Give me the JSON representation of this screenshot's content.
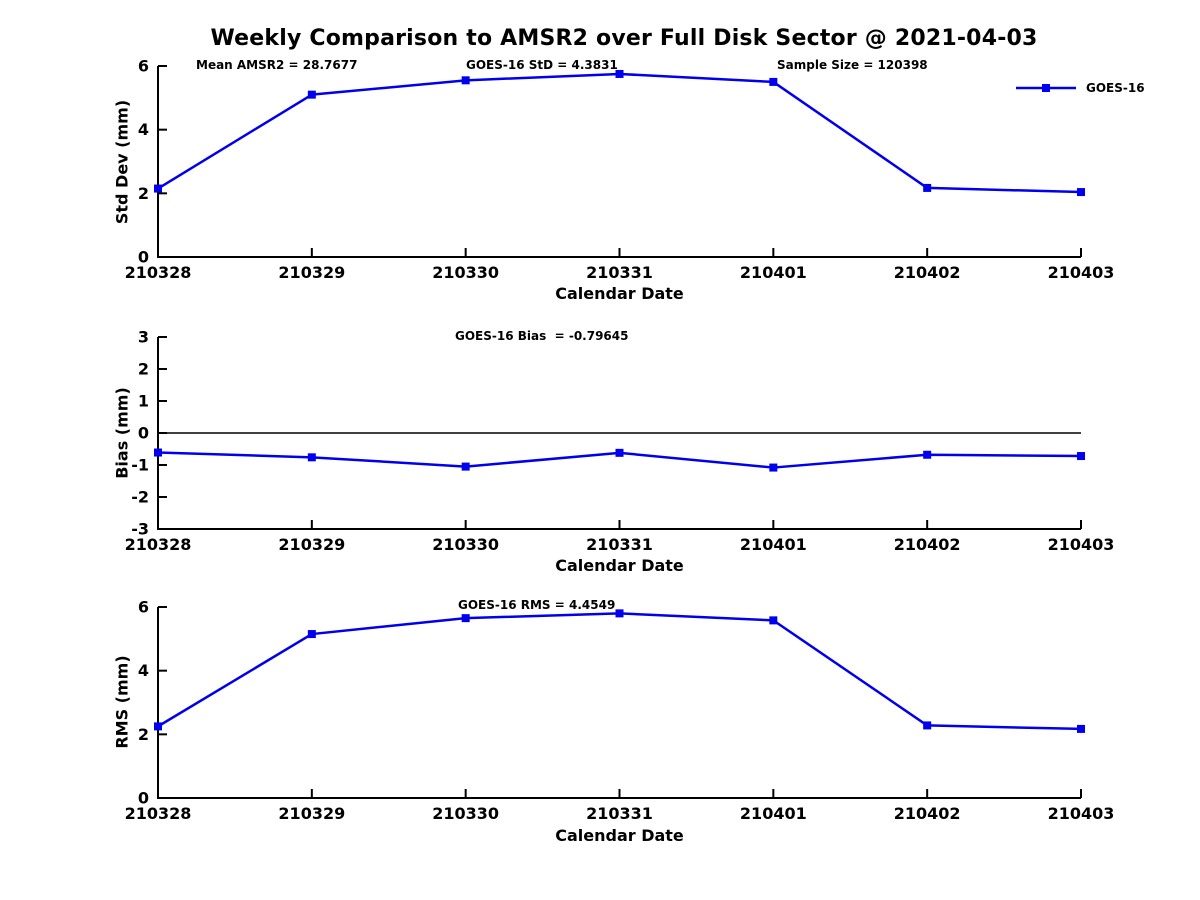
{
  "title": "Weekly Comparison to AMSR2 over Full Disk Sector @ 2021-04-03",
  "style": {
    "line_color": "#0000EE",
    "axis_color": "#000000",
    "text_color": "#000000",
    "background": "#FFFFFF"
  },
  "legend": {
    "label": "GOES-16",
    "position": "upper right"
  },
  "chart_data": [
    {
      "type": "line",
      "title": "",
      "ylabel": "Std Dev (mm)",
      "xlabel": "Calendar Date",
      "categories": [
        "210328",
        "210329",
        "210330",
        "210331",
        "210401",
        "210402",
        "210403"
      ],
      "series": [
        {
          "name": "GOES-16",
          "values": [
            2.15,
            5.1,
            5.55,
            5.75,
            5.5,
            2.17,
            2.04
          ]
        }
      ],
      "ylim": [
        0,
        6
      ],
      "yticks": [
        0,
        2,
        4,
        6
      ],
      "grid": false,
      "zero_line": false,
      "marker": "square",
      "annotations": [
        "Mean AMSR2 = 28.7677",
        "GOES-16 StD = 4.3831",
        "Sample Size = 120398"
      ]
    },
    {
      "type": "line",
      "title": "",
      "ylabel": "Bias (mm)",
      "xlabel": "Calendar Date",
      "categories": [
        "210328",
        "210329",
        "210330",
        "210331",
        "210401",
        "210402",
        "210403"
      ],
      "series": [
        {
          "name": "GOES-16",
          "values": [
            -0.61,
            -0.76,
            -1.05,
            -0.62,
            -1.08,
            -0.68,
            -0.72
          ]
        }
      ],
      "ylim": [
        -3,
        3
      ],
      "yticks": [
        -3,
        -2,
        -1,
        0,
        1,
        2,
        3
      ],
      "grid": false,
      "zero_line": true,
      "marker": "square",
      "annotations": [
        "GOES-16 Bias  = -0.79645"
      ]
    },
    {
      "type": "line",
      "title": "",
      "ylabel": "RMS (mm)",
      "xlabel": "Calendar Date",
      "categories": [
        "210328",
        "210329",
        "210330",
        "210331",
        "210401",
        "210402",
        "210403"
      ],
      "series": [
        {
          "name": "GOES-16",
          "values": [
            2.25,
            5.15,
            5.65,
            5.8,
            5.58,
            2.28,
            2.17
          ]
        }
      ],
      "ylim": [
        0,
        6
      ],
      "yticks": [
        0,
        2,
        4,
        6
      ],
      "grid": false,
      "zero_line": false,
      "marker": "square",
      "annotations": [
        "GOES-16 RMS = 4.4549"
      ]
    }
  ]
}
